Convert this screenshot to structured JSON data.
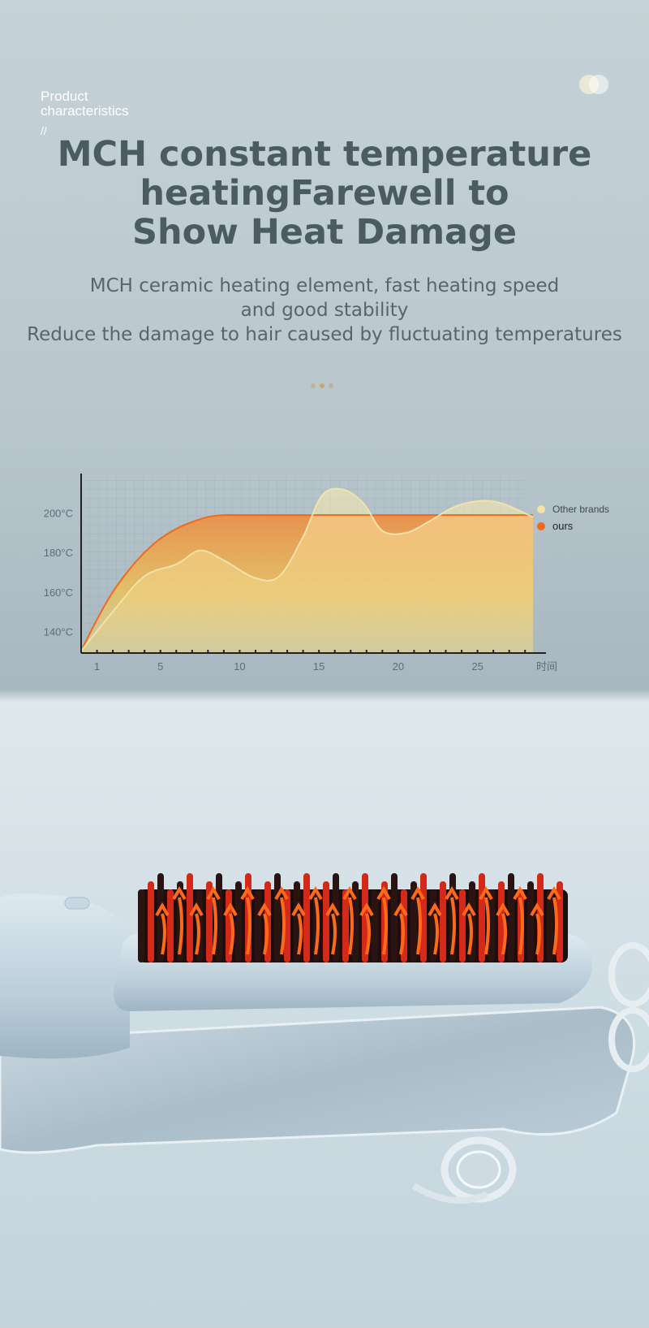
{
  "header": {
    "badge_line1": "Product",
    "badge_line2": "characteristics",
    "badge_slash": "//",
    "title_lines": [
      "MCH constant temperature",
      "heatingFarewell to",
      "Show Heat Damage"
    ],
    "subtitle_lines": [
      "MCH ceramic heating element, fast heating speed",
      "and good stability",
      "Reduce the damage to hair caused by fluctuating temperatures"
    ]
  },
  "colors": {
    "title": "#4a5b62",
    "ours": "#ef6a1e",
    "other": "#f2e3a8",
    "dot_active": "#c9a86a",
    "dot_inactive": "#b8b29e"
  },
  "chart_data": {
    "type": "area",
    "xlabel": "时间",
    "ylabel": "",
    "x_ticks": [
      1,
      5,
      10,
      15,
      20,
      25
    ],
    "y_ticks": [
      "140°C",
      "160°C",
      "180°C",
      "200°C"
    ],
    "xlim": [
      0,
      28.5
    ],
    "ylim": [
      129,
      218
    ],
    "grid": true,
    "legend": "top-right",
    "series": [
      {
        "name": "Other brands",
        "color": "#f2e3a8",
        "x": [
          0,
          2,
          4,
          6,
          7.5,
          9,
          11,
          12.5,
          14,
          15.2,
          16.5,
          17.8,
          19,
          20.5,
          22,
          23.5,
          25,
          26.5,
          28.5
        ],
        "y": [
          130,
          150,
          168,
          174,
          181,
          176,
          167,
          168,
          188,
          209,
          212,
          205,
          191,
          190,
          196,
          203,
          206,
          205,
          198
        ]
      },
      {
        "name": "ours",
        "color": "#ef6a1e",
        "x": [
          0,
          1,
          2,
          3,
          4,
          5,
          6,
          7,
          8,
          9,
          10,
          12,
          15,
          20,
          25,
          28.5
        ],
        "y": [
          130,
          146,
          160,
          171,
          180,
          187,
          192,
          195.5,
          198,
          199,
          199,
          199,
          199,
          199,
          199,
          199
        ]
      }
    ]
  }
}
